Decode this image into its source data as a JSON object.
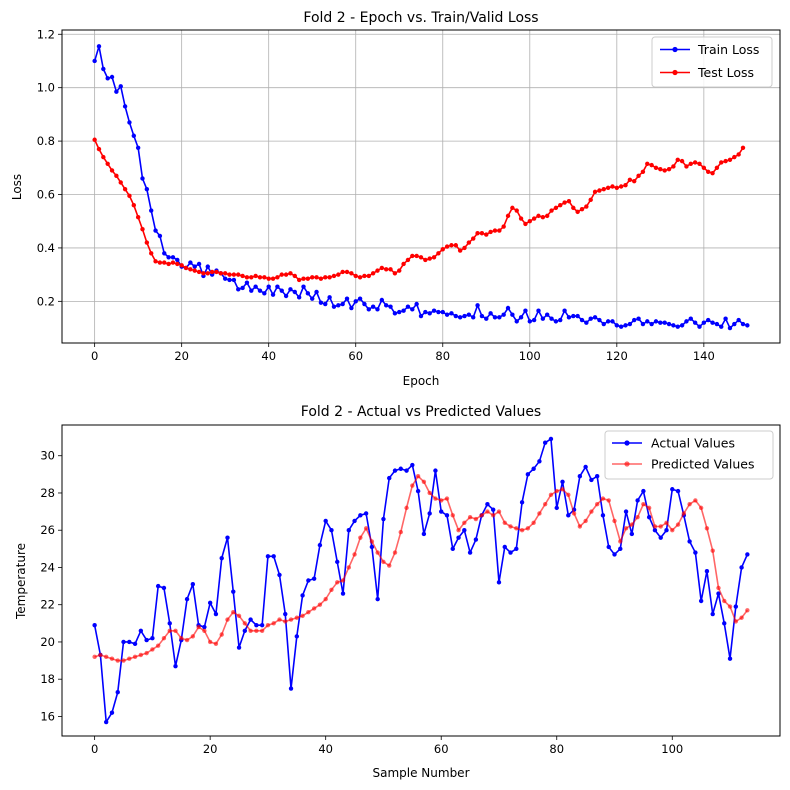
{
  "chart_data": [
    {
      "type": "line",
      "title": "Fold 2 - Epoch vs. Train/Valid Loss",
      "xlabel": "Epoch",
      "ylabel": "Loss",
      "xlim": [
        -7.5,
        157.5
      ],
      "ylim": [
        0.044,
        1.216
      ],
      "xticks": [
        0,
        20,
        40,
        60,
        80,
        100,
        120,
        140
      ],
      "yticks": [
        0.2,
        0.4,
        0.6,
        0.8,
        1.0,
        1.2
      ],
      "ytick_decimals": 1,
      "grid": true,
      "legend": "top-right",
      "series": [
        {
          "name": "Train Loss",
          "color": "#0000ff",
          "alpha": 1,
          "values": [
            1.1,
            1.155,
            1.07,
            1.035,
            1.04,
            0.985,
            1.005,
            0.93,
            0.87,
            0.82,
            0.775,
            0.66,
            0.62,
            0.54,
            0.465,
            0.445,
            0.38,
            0.365,
            0.365,
            0.355,
            0.33,
            0.325,
            0.345,
            0.33,
            0.34,
            0.295,
            0.33,
            0.3,
            0.315,
            0.305,
            0.285,
            0.28,
            0.28,
            0.245,
            0.25,
            0.27,
            0.24,
            0.255,
            0.24,
            0.23,
            0.255,
            0.225,
            0.255,
            0.24,
            0.22,
            0.245,
            0.235,
            0.215,
            0.255,
            0.23,
            0.21,
            0.235,
            0.195,
            0.19,
            0.215,
            0.18,
            0.185,
            0.19,
            0.21,
            0.175,
            0.2,
            0.21,
            0.19,
            0.17,
            0.18,
            0.17,
            0.205,
            0.185,
            0.18,
            0.155,
            0.16,
            0.165,
            0.18,
            0.17,
            0.19,
            0.145,
            0.16,
            0.155,
            0.165,
            0.16,
            0.16,
            0.15,
            0.155,
            0.145,
            0.14,
            0.145,
            0.15,
            0.14,
            0.185,
            0.145,
            0.135,
            0.155,
            0.14,
            0.14,
            0.15,
            0.175,
            0.15,
            0.125,
            0.14,
            0.165,
            0.125,
            0.13,
            0.165,
            0.135,
            0.15,
            0.135,
            0.125,
            0.13,
            0.165,
            0.14,
            0.145,
            0.145,
            0.13,
            0.12,
            0.135,
            0.14,
            0.13,
            0.115,
            0.125,
            0.125,
            0.11,
            0.105,
            0.11,
            0.115,
            0.13,
            0.135,
            0.115,
            0.125,
            0.115,
            0.125,
            0.12,
            0.12,
            0.115,
            0.11,
            0.105,
            0.11,
            0.125,
            0.135,
            0.12,
            0.105,
            0.12,
            0.13,
            0.12,
            0.115,
            0.105,
            0.135,
            0.1,
            0.115,
            0.13,
            0.115,
            0.11
          ]
        },
        {
          "name": "Test Loss",
          "color": "#ff0000",
          "alpha": 1,
          "values": [
            0.805,
            0.77,
            0.74,
            0.715,
            0.69,
            0.67,
            0.645,
            0.62,
            0.595,
            0.56,
            0.515,
            0.47,
            0.42,
            0.38,
            0.35,
            0.345,
            0.345,
            0.34,
            0.345,
            0.34,
            0.335,
            0.325,
            0.32,
            0.315,
            0.31,
            0.305,
            0.305,
            0.31,
            0.31,
            0.305,
            0.305,
            0.3,
            0.3,
            0.3,
            0.295,
            0.29,
            0.29,
            0.295,
            0.29,
            0.29,
            0.285,
            0.285,
            0.29,
            0.3,
            0.3,
            0.305,
            0.295,
            0.28,
            0.285,
            0.285,
            0.29,
            0.29,
            0.285,
            0.29,
            0.29,
            0.295,
            0.3,
            0.31,
            0.31,
            0.305,
            0.295,
            0.29,
            0.295,
            0.295,
            0.305,
            0.315,
            0.325,
            0.32,
            0.32,
            0.305,
            0.315,
            0.34,
            0.355,
            0.37,
            0.37,
            0.365,
            0.355,
            0.36,
            0.365,
            0.38,
            0.395,
            0.405,
            0.41,
            0.41,
            0.39,
            0.4,
            0.42,
            0.435,
            0.455,
            0.455,
            0.45,
            0.46,
            0.465,
            0.465,
            0.48,
            0.52,
            0.55,
            0.54,
            0.51,
            0.49,
            0.5,
            0.51,
            0.52,
            0.515,
            0.52,
            0.54,
            0.55,
            0.56,
            0.57,
            0.575,
            0.55,
            0.535,
            0.545,
            0.555,
            0.58,
            0.61,
            0.615,
            0.62,
            0.625,
            0.63,
            0.625,
            0.63,
            0.635,
            0.655,
            0.65,
            0.67,
            0.685,
            0.715,
            0.71,
            0.7,
            0.695,
            0.69,
            0.695,
            0.705,
            0.73,
            0.725,
            0.705,
            0.715,
            0.72,
            0.715,
            0.7,
            0.685,
            0.68,
            0.7,
            0.72,
            0.725,
            0.73,
            0.74,
            0.75,
            0.775
          ]
        }
      ]
    },
    {
      "type": "line",
      "title": "Fold 2 - Actual vs Predicted Values",
      "xlabel": "Sample Number",
      "ylabel": "Temperature",
      "xlim": [
        -5.65,
        118.65
      ],
      "ylim": [
        14.95,
        31.65
      ],
      "xticks": [
        0,
        20,
        40,
        60,
        80,
        100
      ],
      "yticks": [
        16,
        18,
        20,
        22,
        24,
        26,
        28,
        30
      ],
      "ytick_decimals": 0,
      "grid": false,
      "legend": "top-right",
      "series": [
        {
          "name": "Actual Values",
          "color": "#0000ff",
          "alpha": 1,
          "values": [
            20.9,
            19.3,
            15.7,
            16.2,
            17.3,
            20.0,
            20.0,
            19.9,
            20.6,
            20.1,
            20.2,
            23.0,
            22.9,
            21.0,
            18.7,
            20.1,
            22.3,
            23.1,
            20.9,
            20.8,
            22.1,
            21.5,
            24.5,
            25.6,
            22.7,
            19.7,
            20.6,
            21.2,
            20.9,
            20.9,
            24.6,
            24.6,
            23.6,
            21.5,
            17.5,
            20.3,
            22.5,
            23.3,
            23.4,
            25.2,
            26.5,
            26.0,
            24.3,
            22.6,
            26.0,
            26.5,
            26.8,
            26.9,
            25.1,
            22.3,
            26.6,
            28.8,
            29.2,
            29.3,
            29.2,
            29.5,
            28.1,
            25.8,
            26.9,
            29.2,
            27.0,
            26.8,
            25.0,
            25.6,
            26.0,
            24.8,
            25.5,
            26.8,
            27.4,
            27.1,
            23.2,
            25.1,
            24.8,
            25.0,
            27.5,
            29.0,
            29.3,
            29.7,
            30.7,
            30.9,
            27.2,
            28.6,
            26.8,
            27.1,
            28.9,
            29.4,
            28.7,
            28.9,
            26.8,
            25.1,
            24.7,
            25.0,
            27.0,
            25.8,
            27.6,
            28.1,
            26.7,
            26.0,
            25.6,
            26.0,
            28.2,
            28.1,
            26.8,
            25.4,
            24.8,
            22.2,
            23.8,
            21.5,
            22.6,
            21.0,
            19.1,
            21.9,
            24.0,
            24.7
          ]
        },
        {
          "name": "Predicted Values",
          "color": "#ff0000",
          "alpha": 0.6,
          "values": [
            19.2,
            19.3,
            19.2,
            19.1,
            19.0,
            19.0,
            19.1,
            19.2,
            19.3,
            19.4,
            19.6,
            19.8,
            20.2,
            20.6,
            20.6,
            20.2,
            20.1,
            20.3,
            20.8,
            20.6,
            20.0,
            19.9,
            20.4,
            21.2,
            21.6,
            21.4,
            21.0,
            20.6,
            20.6,
            20.6,
            20.9,
            21.0,
            21.2,
            21.1,
            21.2,
            21.3,
            21.4,
            21.6,
            21.8,
            22.0,
            22.3,
            22.8,
            23.2,
            23.3,
            24.0,
            24.7,
            25.6,
            26.1,
            25.4,
            24.8,
            24.3,
            24.1,
            24.8,
            25.9,
            27.2,
            28.4,
            28.9,
            28.6,
            28.0,
            27.7,
            27.6,
            27.7,
            26.8,
            26.0,
            26.4,
            26.7,
            26.6,
            26.8,
            27.0,
            26.8,
            27.0,
            26.4,
            26.2,
            26.1,
            26.0,
            26.1,
            26.4,
            26.9,
            27.4,
            27.9,
            28.1,
            28.2,
            27.9,
            26.9,
            26.2,
            26.5,
            27.0,
            27.4,
            27.7,
            27.6,
            26.5,
            25.4,
            26.1,
            26.3,
            26.7,
            27.4,
            27.2,
            26.2,
            26.2,
            26.4,
            26.0,
            26.3,
            26.9,
            27.4,
            27.6,
            27.2,
            26.1,
            24.9,
            22.9,
            22.2,
            21.9,
            21.1,
            21.3,
            21.7
          ]
        }
      ]
    }
  ]
}
